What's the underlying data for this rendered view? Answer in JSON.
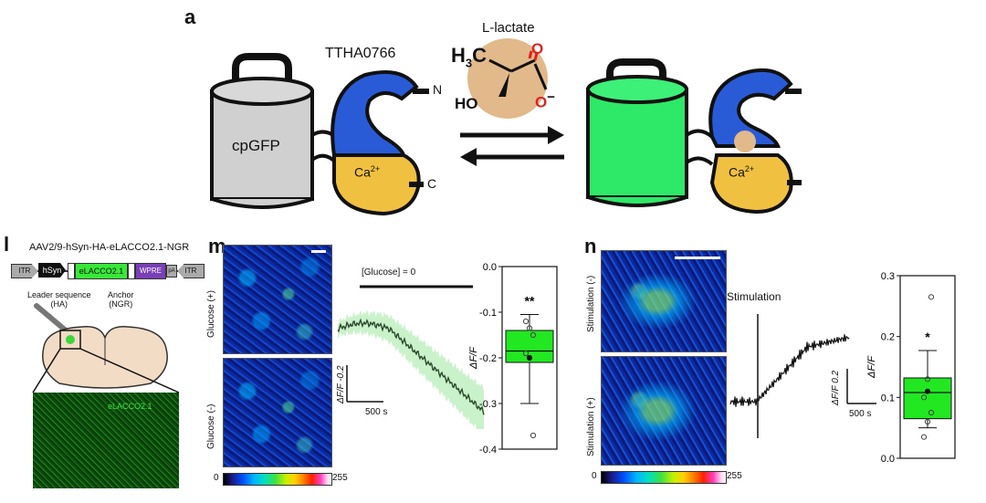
{
  "panel_a": {
    "label": "a",
    "protein_name": "TTHA0766",
    "fp_name": "cpGFP",
    "ligand_name": "L-lactate",
    "ion_label": "Ca",
    "ion_charge": "2+",
    "n_terminus": "N",
    "c_terminus": "C",
    "chem_h3c": "H",
    "chem_sub3": "3",
    "chem_c": "C",
    "chem_ho": "HO",
    "chem_o": "O",
    "chem_minus": "−",
    "colors": {
      "blue": "#2a5bd7",
      "yellow": "#f0c040",
      "green": "#2ee868",
      "grey": "#d0d0d0",
      "ligand": "#e2b98a"
    }
  },
  "panel_l": {
    "label": "l",
    "construct_title": "AAV2/9-hSyn-HA-eLACCO2.1-NGR",
    "itr_left": "ITR",
    "itr_right": "ITR",
    "promoter": "hSyn",
    "gene": "eLACCO2.1",
    "wpre": "WPRE",
    "pa": "pA",
    "leader_label": "Leader sequence",
    "leader_sub": "(HA)",
    "anchor_label": "Anchor",
    "anchor_sub": "(NGR)",
    "micrograph_label": "eLACCO2.1"
  },
  "panel_m": {
    "label": "m",
    "image_top_label": "Glucose (+)",
    "image_bottom_label": "Glucose (-)",
    "colorbar_min": "0",
    "colorbar_max": "255",
    "trace_condition": "[Glucose] = 0",
    "scale_y": "ΔF/F -0.2",
    "scale_x": "500 s",
    "box_significance": "**",
    "box_ylabel": "ΔF/F"
  },
  "panel_n": {
    "label": "n",
    "image_top_label": "Stimulation (-)",
    "image_bottom_label": "Stimulation (+)",
    "colorbar_min": "0",
    "colorbar_max": "255",
    "trace_event": "Stimulation",
    "scale_y": "ΔF/F 0.2",
    "scale_x": "500 s",
    "box_significance": "*",
    "box_ylabel": "ΔF/F"
  },
  "chart_data": [
    {
      "type": "box",
      "ylabel": "ΔF/F",
      "ylim": [
        -0.4,
        0.0
      ],
      "yticks": [
        "0.0",
        "-0.1",
        "-0.2",
        "-0.3",
        "-0.4"
      ],
      "box": {
        "q1": -0.21,
        "median": -0.185,
        "q3": -0.14,
        "whisker_low": -0.3,
        "whisker_high": -0.105,
        "mean": -0.2
      },
      "points": [
        -0.12,
        -0.135,
        -0.15,
        -0.19,
        -0.2,
        -0.37
      ],
      "significance": "**",
      "color": "#22e822"
    },
    {
      "type": "box",
      "ylabel": "ΔF/F",
      "ylim": [
        0.0,
        0.3
      ],
      "yticks": [
        "0.3",
        "0.2",
        "0.1",
        "0.0"
      ],
      "box": {
        "q1": 0.065,
        "median": 0.108,
        "q3": 0.132,
        "whisker_low": 0.05,
        "whisker_high": 0.177,
        "mean": 0.11
      },
      "points": [
        0.035,
        0.06,
        0.075,
        0.1,
        0.13,
        0.265
      ],
      "significance": "*",
      "color": "#22e822"
    }
  ]
}
